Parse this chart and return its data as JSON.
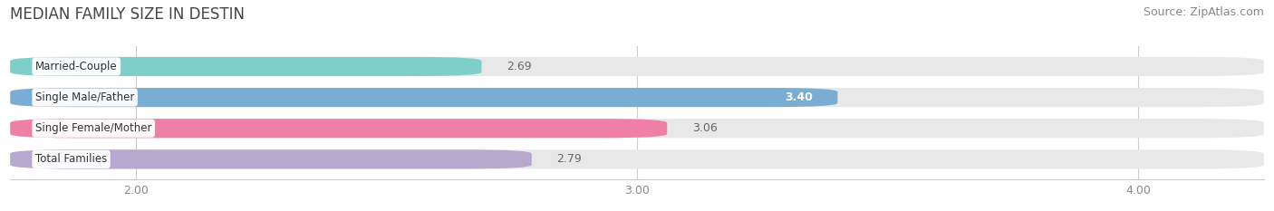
{
  "title": "MEDIAN FAMILY SIZE IN DESTIN",
  "source": "Source: ZipAtlas.com",
  "categories": [
    "Married-Couple",
    "Single Male/Father",
    "Single Female/Mother",
    "Total Families"
  ],
  "values": [
    2.69,
    3.4,
    3.06,
    2.79
  ],
  "bar_colors": [
    "#7ececa",
    "#7aadd4",
    "#f07fa8",
    "#b8a8d0"
  ],
  "bar_bg_color": "#e8e8e8",
  "xlim": [
    1.75,
    4.25
  ],
  "x_axis_start": 1.75,
  "xticks": [
    2.0,
    3.0,
    4.0
  ],
  "xtick_labels": [
    "2.00",
    "3.00",
    "4.00"
  ],
  "title_fontsize": 12,
  "source_fontsize": 9,
  "bar_label_fontsize": 8.5,
  "value_fontsize": 9,
  "tick_fontsize": 9,
  "bar_height": 0.62,
  "background_color": "#ffffff",
  "plot_bg_color": "#ffffff",
  "value_inside_color": "#ffffff",
  "value_outside_color": "#666666",
  "inside_threshold": 3.3
}
